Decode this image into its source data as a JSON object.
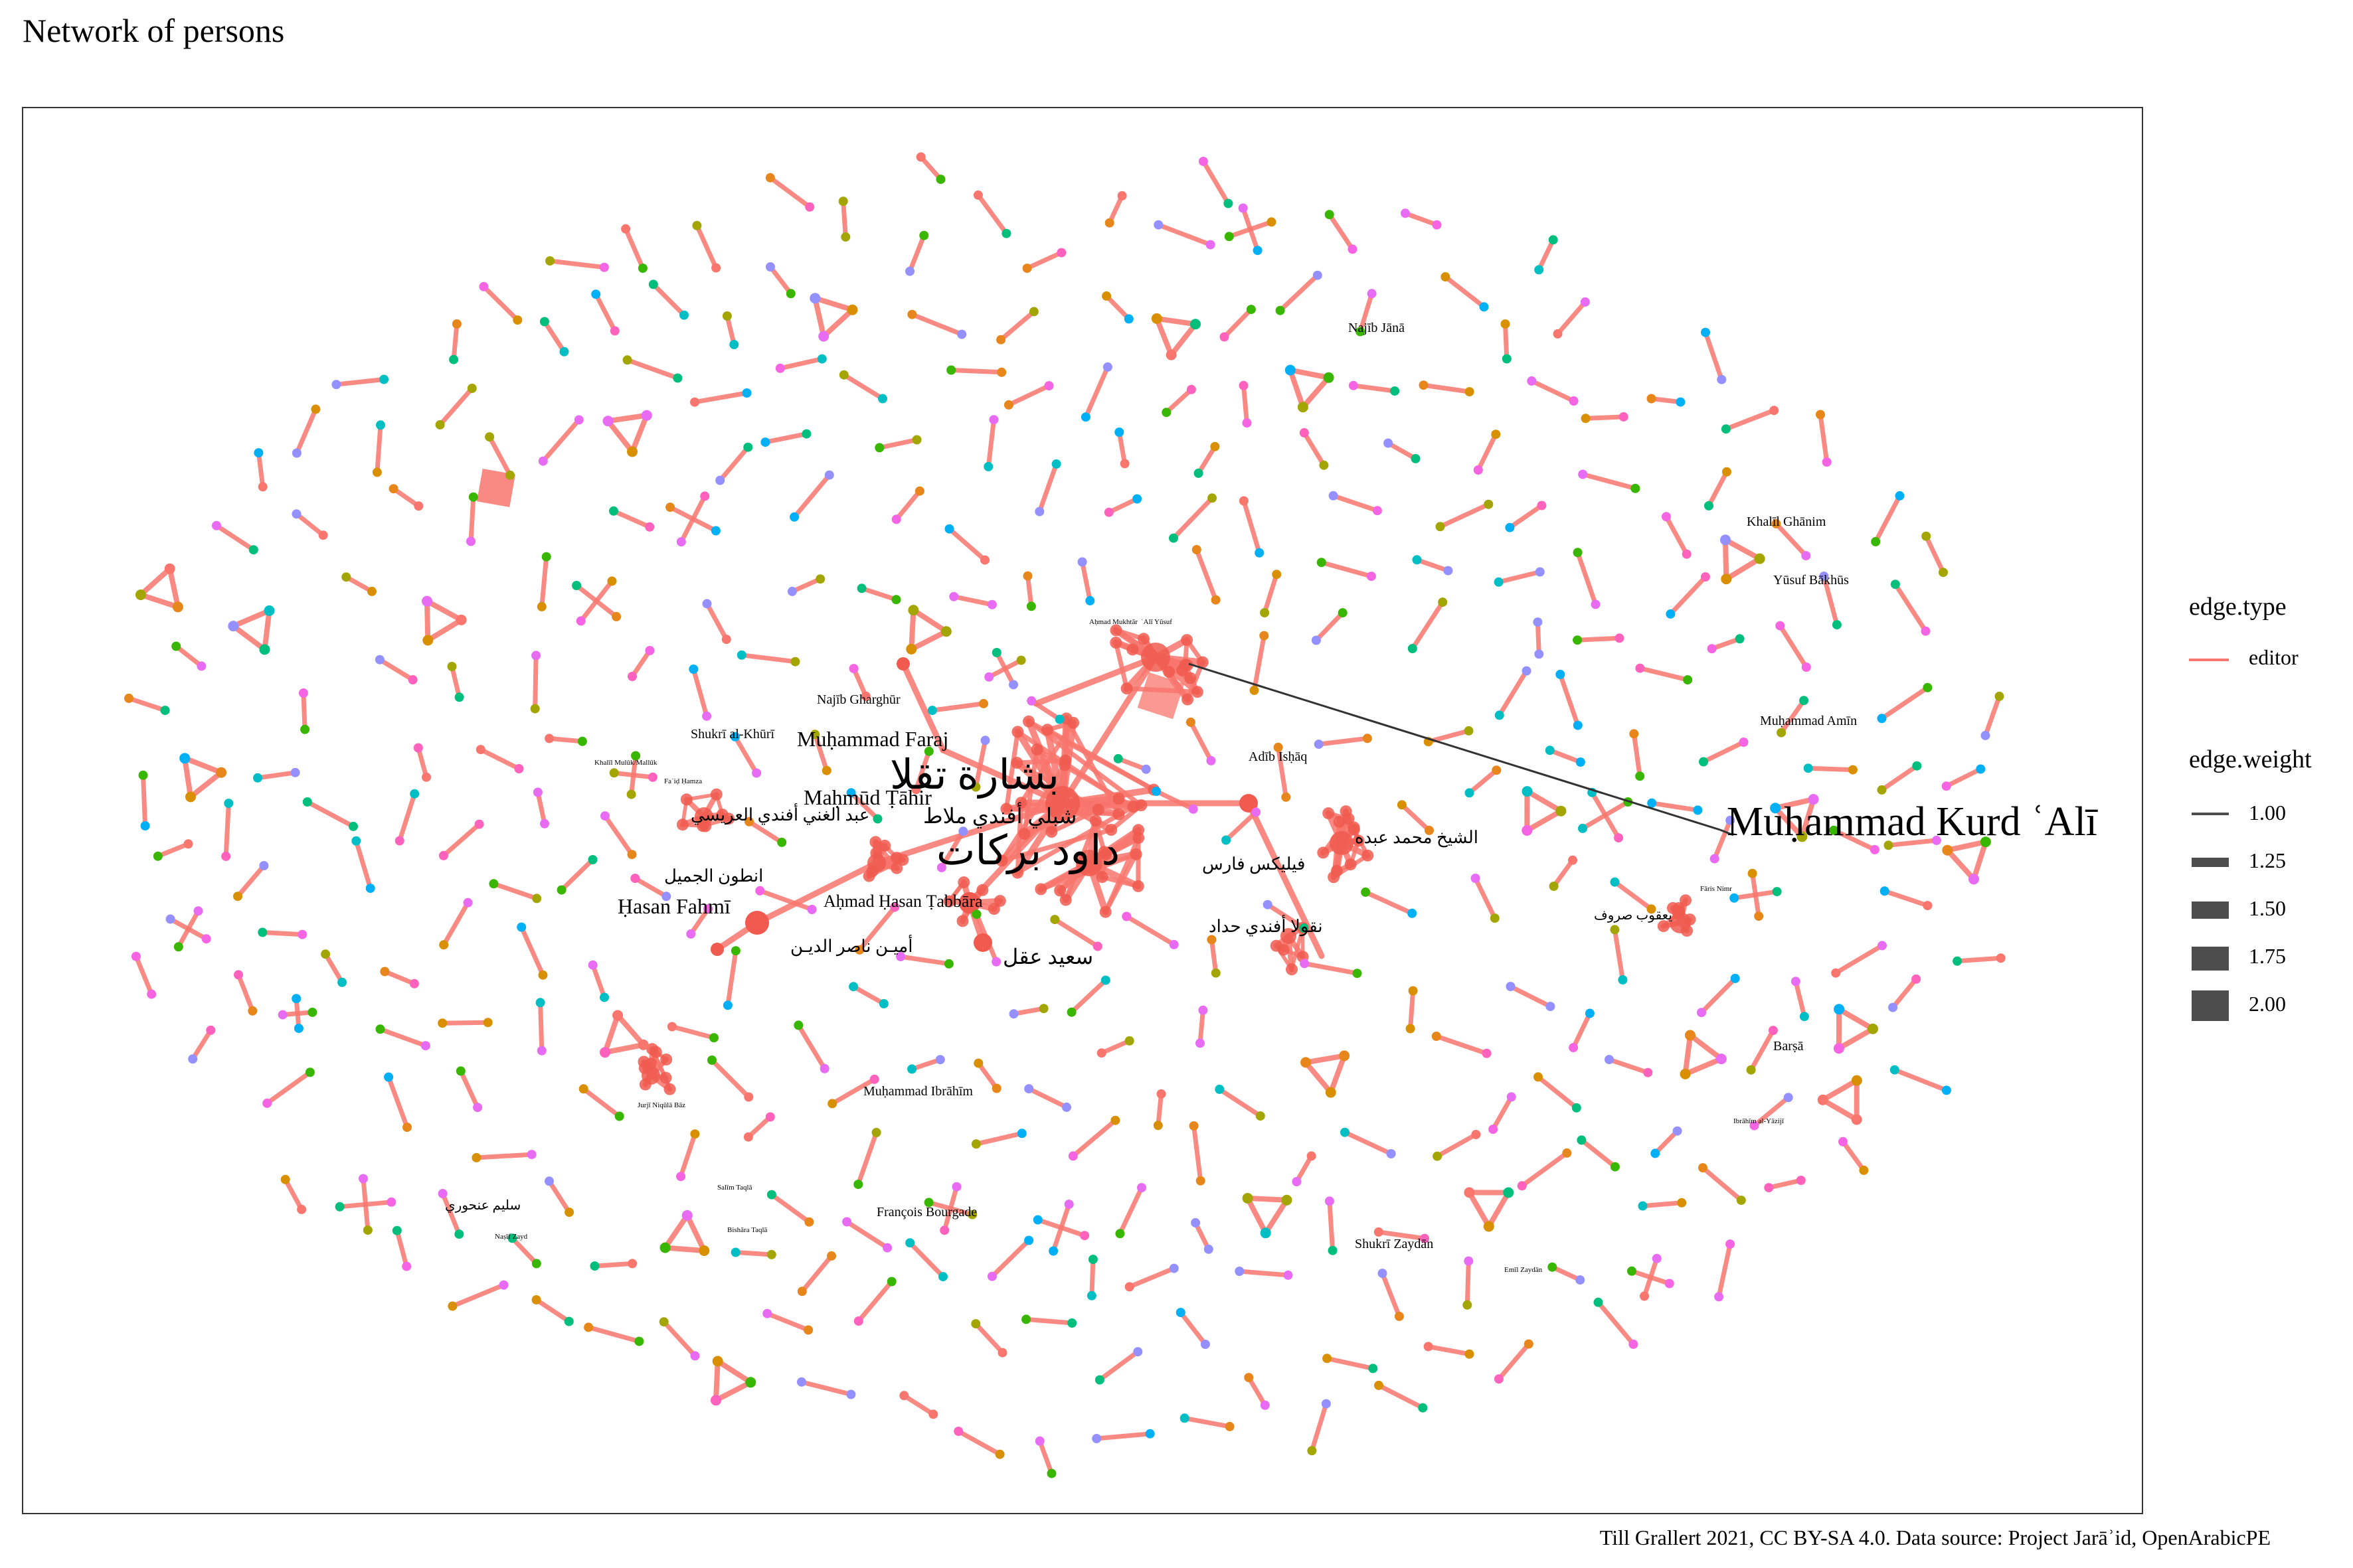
{
  "title": "Network of persons",
  "caption": "Till Grallert 2021, CC BY-SA 4.0. Data source: Project Jarāʾid, OpenArabicPE",
  "legend": {
    "edge_type": {
      "title": "edge.type",
      "items": [
        {
          "label": "editor",
          "color": "#f8766d"
        }
      ]
    },
    "edge_weight": {
      "title": "edge.weight",
      "items": [
        "1.00",
        "1.25",
        "1.50",
        "1.75",
        "2.00"
      ]
    }
  },
  "colors": {
    "edge": "#f8766d",
    "hub": "#f05a4f",
    "node_palette": [
      "#f8766d",
      "#e76bf3",
      "#00b0f6",
      "#00bf7d",
      "#a3a500",
      "#9590ff",
      "#f564e3",
      "#00bfc4",
      "#d89000",
      "#39b600",
      "#ff62bc",
      "#e7861b"
    ],
    "label_line": "#333333"
  },
  "labels": [
    {
      "text": "Muḥammad Kurd ʿAlī",
      "size": "xl"
    },
    {
      "text": "بشارة تقلا",
      "size": "xl"
    },
    {
      "text": "داود بركات",
      "size": "xl"
    },
    {
      "text": "Muḥammad Faraj",
      "size": "l"
    },
    {
      "text": "Maḥmūd Ṭāhir",
      "size": "l"
    },
    {
      "text": "شبلي أفندي ملاط",
      "size": "l"
    },
    {
      "text": "سعيد عقل",
      "size": "l"
    },
    {
      "text": "Ḥasan Fahmī",
      "size": "l"
    },
    {
      "text": "عبد الغني أفندي العريسي",
      "size": "m"
    },
    {
      "text": "انطون الجميل",
      "size": "m"
    },
    {
      "text": "أميـن ناصر الديـن",
      "size": "m"
    },
    {
      "text": "Aḥmad Ḥasan Ṭabbāra",
      "size": "m"
    },
    {
      "text": "الشيخ محمد عبده",
      "size": "m"
    },
    {
      "text": "فيليكس فارس",
      "size": "m"
    },
    {
      "text": "نقولا أفندي حداد",
      "size": "m"
    },
    {
      "text": "Adīb Isḥāq",
      "size": "s"
    },
    {
      "text": "Najīb Gharghūr",
      "size": "s"
    },
    {
      "text": "Shukrī al-Khūrī",
      "size": "s"
    },
    {
      "text": "Najīb Jānā",
      "size": "s"
    },
    {
      "text": "Khalīl Ghānim",
      "size": "s"
    },
    {
      "text": "Yūsuf Bākhūs",
      "size": "s"
    },
    {
      "text": "Muḥammad Amīn",
      "size": "s"
    },
    {
      "text": "يعقوب صروف",
      "size": "s"
    },
    {
      "text": "Muḥammad Ibrāhīm",
      "size": "s"
    },
    {
      "text": "François Bourgade",
      "size": "s"
    },
    {
      "text": "سليم عنحوري",
      "size": "s"
    },
    {
      "text": "Barṣā",
      "size": "s"
    },
    {
      "text": "Shukrī Zaydān",
      "size": "s"
    },
    {
      "text": "Jurjī Niqūlā Bāz",
      "size": "xs"
    },
    {
      "text": "Salīm Taqlā",
      "size": "xs"
    },
    {
      "text": "Bishāra Taqlā",
      "size": "xs"
    },
    {
      "text": "Ibrāhīm al-Yāzijī",
      "size": "xs"
    },
    {
      "text": "Emīl Zaydān",
      "size": "xs"
    },
    {
      "text": "Khalīl Mulūk/Mallūk",
      "size": "xs"
    },
    {
      "text": "Faʾiḍ Ḥamza",
      "size": "xs"
    },
    {
      "text": "Naṣīf Zayd",
      "size": "xs"
    },
    {
      "text": "Fāris Nimr",
      "size": "xs"
    },
    {
      "text": "Aḥmad Mukhtār",
      "size": "xs"
    },
    {
      "text": "ʿAlī Yūsuf",
      "size": "xs"
    }
  ]
}
